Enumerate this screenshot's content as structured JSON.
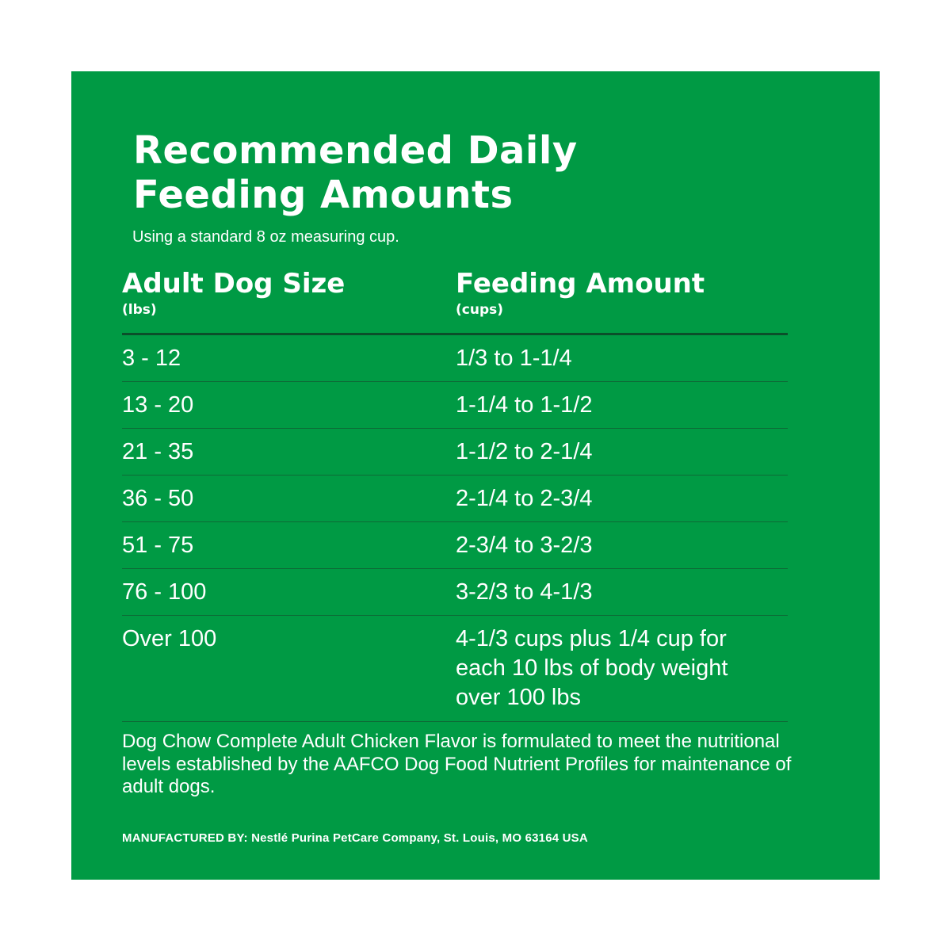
{
  "title_line1": "Recommended Daily",
  "title_line2": "Feeding Amounts",
  "subtitle": "Using a standard 8 oz measuring cup.",
  "columns": [
    {
      "label": "Adult Dog Size",
      "unit": "(lbs)"
    },
    {
      "label": "Feeding Amount",
      "unit": "(cups)"
    }
  ],
  "rows": [
    {
      "size": "3 - 12",
      "amount": "1/3 to 1-1/4"
    },
    {
      "size": "13 - 20",
      "amount": "1-1/4 to 1-1/2"
    },
    {
      "size": "21 - 35",
      "amount": "1-1/2 to 2-1/4"
    },
    {
      "size": "36 - 50",
      "amount": "2-1/4 to 2-3/4"
    },
    {
      "size": "51 - 75",
      "amount": "2-3/4 to 3-2/3"
    },
    {
      "size": "76 - 100",
      "amount": "3-2/3 to 4-1/3"
    },
    {
      "size": "Over 100",
      "amount": "4-1/3 cups plus 1/4 cup for each 10 lbs of body weight over 100 lbs"
    }
  ],
  "note": "Dog Chow Complete Adult Chicken Flavor is formulated to meet the nutritional levels established by the AAFCO Dog Food Nutrient Profiles for maintenance of adult dogs.",
  "manufacturer": "MANUFACTURED BY: Nestlé Purina PetCare Company, St. Louis, MO 63164 USA",
  "colors": {
    "panel": "#009a44",
    "text": "#ffffff",
    "header_rule": "#0b4f2a",
    "row_rule": "#0d6a36"
  }
}
